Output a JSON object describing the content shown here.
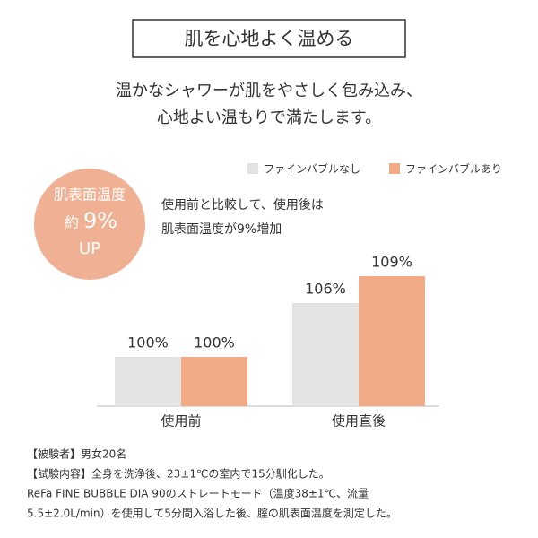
{
  "header": {
    "title": "肌を心地よく温める",
    "lead": [
      "温かなシャワーが肌をやさしく包み込み、",
      "心地よい温もりで満たします。"
    ]
  },
  "badge": {
    "label": "肌表面温度",
    "prefix": "約",
    "value": "9%",
    "suffix": "UP"
  },
  "note": [
    "使用前と比較して、使用後は",
    "肌表面温度が9%増加"
  ],
  "chart_data": {
    "type": "bar",
    "categories": [
      "使用前",
      "使用直後"
    ],
    "series": [
      {
        "name": "ファインバブルなし",
        "color": "#e3e3e3",
        "values": [
          100,
          106
        ],
        "value_labels": [
          "100%",
          "106%"
        ]
      },
      {
        "name": "ファインバブルあり",
        "color": "#f2ab87",
        "values": [
          100,
          109
        ],
        "value_labels": [
          "100%",
          "109%"
        ]
      }
    ],
    "ylim": [
      94.5,
      111.3
    ],
    "legend": "top-right"
  },
  "footer": [
    "【被験者】男女20名",
    "【試験内容】全身を洗浄後、23±1℃の室内で15分馴化した。",
    "ReFa FINE BUBBLE DIA 90のストレートモード（温度38±1℃、流量",
    "5.5±2.0L/min）を使用して5分間入浴した後、腟の肌表面温度を測定した。"
  ]
}
